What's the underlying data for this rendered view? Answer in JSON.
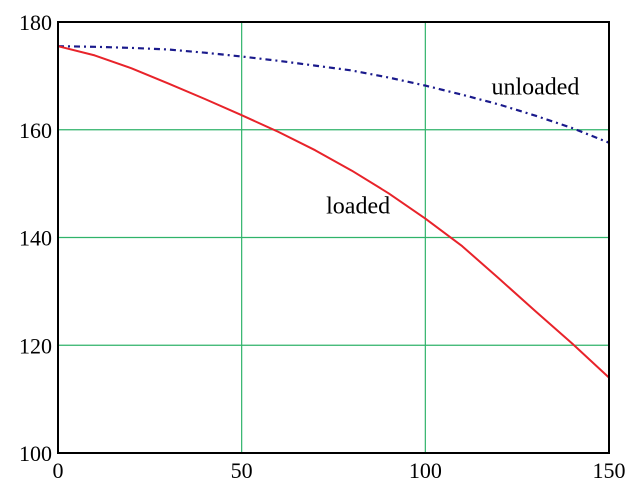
{
  "chart_data": {
    "type": "line",
    "title": "",
    "xlabel": "",
    "ylabel": "",
    "xlim": [
      0,
      150
    ],
    "ylim": [
      100,
      180
    ],
    "xticks": [
      0,
      50,
      100,
      150
    ],
    "yticks": [
      100,
      120,
      140,
      160,
      180
    ],
    "grid": true,
    "legend": "none",
    "colors": {
      "grid": "#2fb36a",
      "frame": "#000000"
    },
    "annotations": [
      {
        "text": "unloaded",
        "x": 118,
        "y": 166.5
      },
      {
        "text": "loaded",
        "x": 73,
        "y": 144.5
      }
    ],
    "series": [
      {
        "style": "dashdot",
        "color": "#1a1a8c",
        "x": [
          0,
          10,
          20,
          30,
          40,
          50,
          60,
          70,
          80,
          90,
          100,
          110,
          120,
          130,
          140,
          150
        ],
        "y": [
          175.5,
          175.4,
          175.2,
          174.9,
          174.3,
          173.6,
          172.8,
          171.9,
          171.0,
          169.7,
          168.2,
          166.5,
          164.7,
          162.6,
          160.3,
          157.6
        ]
      },
      {
        "style": "solid",
        "color": "#e8232a",
        "x": [
          0,
          10,
          20,
          30,
          40,
          50,
          60,
          70,
          80,
          90,
          100,
          110,
          120,
          130,
          140,
          150
        ],
        "y": [
          175.5,
          173.8,
          171.4,
          168.6,
          165.7,
          162.7,
          159.6,
          156.2,
          152.4,
          148.2,
          143.5,
          138.4,
          132.4,
          126.3,
          120.3,
          114.0
        ]
      }
    ]
  }
}
